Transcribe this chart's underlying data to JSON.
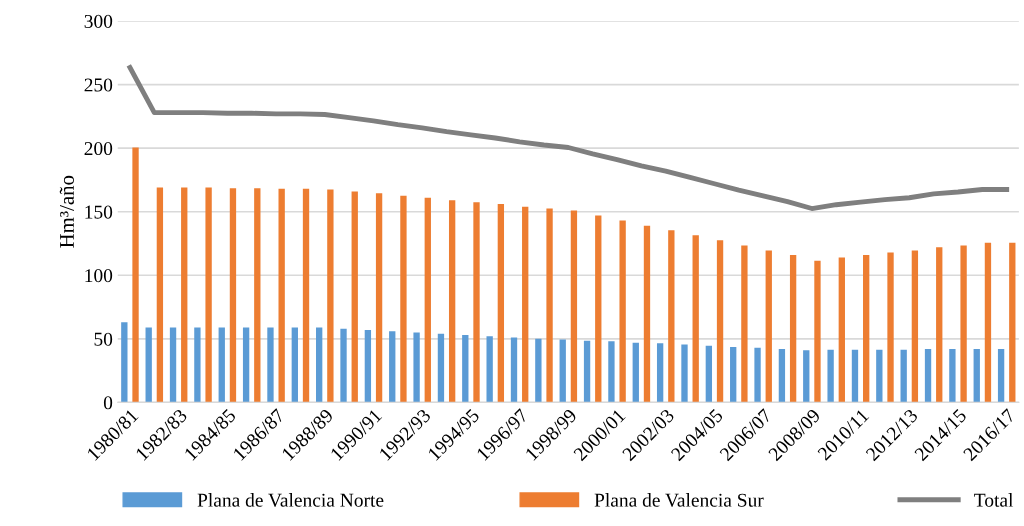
{
  "chart_data": {
    "type": "bar",
    "ylabel": "Hm³/año",
    "categories": [
      "1980/81",
      null,
      "1982/83",
      null,
      "1984/85",
      null,
      "1986/87",
      null,
      "1988/89",
      null,
      "1990/91",
      null,
      "1992/93",
      null,
      "1994/95",
      null,
      "1996/97",
      null,
      "1998/99",
      null,
      "2000/01",
      null,
      "2002/03",
      null,
      "2004/05",
      null,
      "2006/07",
      null,
      "2008/09",
      null,
      "2010/11",
      null,
      "2012/13",
      null,
      "2014/15",
      null,
      "2016/17"
    ],
    "series": [
      {
        "name": "Plana de Valencia Norte",
        "color": "#5b9bd5",
        "values": [
          63,
          59,
          59,
          59,
          59,
          59,
          59,
          59,
          59,
          58,
          57,
          56,
          55,
          54,
          53,
          52,
          51,
          50,
          49.5,
          48.5,
          48,
          47,
          46.5,
          45.5,
          44.5,
          43.5,
          43,
          42,
          41,
          41.5,
          41.5,
          41.5,
          41.5,
          42,
          42,
          42,
          42
        ]
      },
      {
        "name": "Plana de Valencia Sur",
        "color": "#ed7d31",
        "values": [
          200.5,
          169,
          169,
          169,
          168.5,
          168.5,
          168,
          168,
          167.5,
          166,
          164.5,
          162.5,
          161,
          159,
          157.5,
          156,
          154,
          152.5,
          151,
          147,
          143,
          139,
          135.5,
          131.5,
          127.5,
          123.5,
          119.5,
          116,
          111.5,
          114,
          116,
          118,
          119.5,
          122,
          123.5,
          125.5,
          125.5
        ]
      },
      {
        "name": "Total",
        "type": "line",
        "color": "#7f7f7f",
        "values": [
          263.5,
          228,
          228,
          228,
          227.5,
          227.5,
          227,
          227,
          226.5,
          224,
          221.5,
          218.5,
          216,
          213,
          210.5,
          208,
          205,
          202.5,
          200.5,
          195.5,
          191,
          186,
          182,
          177,
          172,
          167,
          162.5,
          158,
          152.5,
          155.5,
          157.5,
          159.5,
          161,
          164,
          165.5,
          167.5,
          167.5
        ]
      }
    ],
    "ylim": [
      0,
      300
    ],
    "yticks": [
      0,
      50,
      100,
      150,
      200,
      250,
      300
    ],
    "grid": "y",
    "legend": "bottom",
    "marker": "none"
  }
}
